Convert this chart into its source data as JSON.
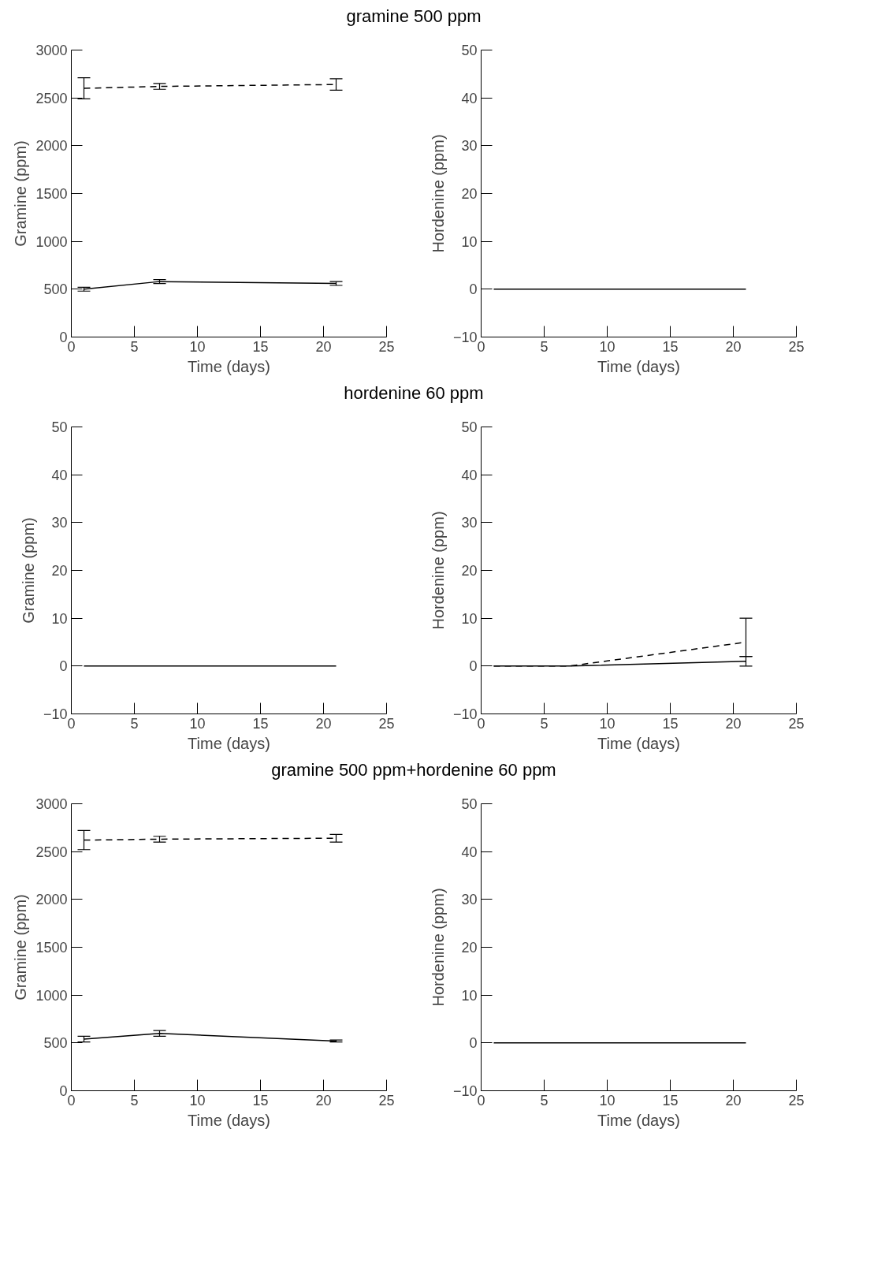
{
  "chart_data": [
    {
      "type": "line",
      "title": "gramine 500 ppm",
      "xlabel": "Time (days)",
      "ylabel": "Gramine (ppm)",
      "xlim": [
        0,
        25
      ],
      "xticks": [
        0,
        5,
        10,
        15,
        20,
        25
      ],
      "ylim": [
        0,
        3000
      ],
      "yticks": [
        0,
        500,
        1000,
        1500,
        2000,
        2500,
        3000
      ],
      "grid": false,
      "marker": "none",
      "x": [
        1,
        7,
        21
      ],
      "series": [
        {
          "color": "#000000",
          "line_style": "solid",
          "values": [
            500,
            580,
            560
          ],
          "errors": [
            20,
            20,
            20
          ]
        },
        {
          "color": "#000000",
          "line_style": "dashed",
          "values": [
            2600,
            2620,
            2640
          ],
          "errors": [
            110,
            30,
            60
          ]
        }
      ]
    },
    {
      "type": "line",
      "xlabel": "Time (days)",
      "ylabel": "Hordenine (ppm)",
      "xlim": [
        0,
        25
      ],
      "xticks": [
        0,
        5,
        10,
        15,
        20,
        25
      ],
      "ylim": [
        -10,
        50
      ],
      "yticks": [
        -10,
        0,
        10,
        20,
        30,
        40,
        50
      ],
      "grid": false,
      "marker": "none",
      "x": [
        1,
        7,
        21
      ],
      "series": [
        {
          "color": "#000000",
          "line_style": "solid",
          "values": [
            0,
            0,
            0
          ]
        }
      ]
    },
    {
      "type": "line",
      "title": "hordenine 60 ppm",
      "xlabel": "Time (days)",
      "ylabel": "Gramine (ppm)",
      "xlim": [
        0,
        25
      ],
      "xticks": [
        0,
        5,
        10,
        15,
        20,
        25
      ],
      "ylim": [
        -10,
        50
      ],
      "yticks": [
        -10,
        0,
        10,
        20,
        30,
        40,
        50
      ],
      "grid": false,
      "marker": "none",
      "x": [
        1,
        7,
        21
      ],
      "series": [
        {
          "color": "#000000",
          "line_style": "solid",
          "values": [
            0,
            0,
            0
          ]
        }
      ]
    },
    {
      "type": "line",
      "xlabel": "Time (days)",
      "ylabel": "Hordenine (ppm)",
      "xlim": [
        0,
        25
      ],
      "xticks": [
        0,
        5,
        10,
        15,
        20,
        25
      ],
      "ylim": [
        -10,
        50
      ],
      "yticks": [
        -10,
        0,
        10,
        20,
        30,
        40,
        50
      ],
      "grid": false,
      "marker": "none",
      "x": [
        1,
        7,
        21
      ],
      "series": [
        {
          "color": "#000000",
          "line_style": "solid",
          "values": [
            0,
            0,
            1
          ],
          "errors": [
            null,
            null,
            [
              0,
              2
            ]
          ]
        },
        {
          "color": "#000000",
          "line_style": "dashed",
          "values": [
            0,
            0,
            5
          ],
          "errors": [
            null,
            null,
            [
              2,
              10
            ]
          ]
        }
      ]
    },
    {
      "type": "line",
      "title": "gramine 500 ppm+hordenine 60 ppm",
      "xlabel": "Time (days)",
      "ylabel": "Gramine (ppm)",
      "xlim": [
        0,
        25
      ],
      "xticks": [
        0,
        5,
        10,
        15,
        20,
        25
      ],
      "ylim": [
        0,
        3000
      ],
      "yticks": [
        0,
        500,
        1000,
        1500,
        2000,
        2500,
        3000
      ],
      "grid": false,
      "marker": "none",
      "x": [
        1,
        7,
        21
      ],
      "series": [
        {
          "color": "#000000",
          "line_style": "solid",
          "values": [
            540,
            600,
            520
          ],
          "errors": [
            30,
            30,
            10
          ]
        },
        {
          "color": "#000000",
          "line_style": "dashed",
          "values": [
            2620,
            2630,
            2640
          ],
          "errors": [
            100,
            30,
            40
          ]
        }
      ]
    },
    {
      "type": "line",
      "xlabel": "Time (days)",
      "ylabel": "Hordenine (ppm)",
      "xlim": [
        0,
        25
      ],
      "xticks": [
        0,
        5,
        10,
        15,
        20,
        25
      ],
      "ylim": [
        -10,
        50
      ],
      "yticks": [
        -10,
        0,
        10,
        20,
        30,
        40,
        50
      ],
      "grid": false,
      "marker": "none",
      "x": [
        1,
        7,
        21
      ],
      "series": [
        {
          "color": "#000000",
          "line_style": "solid",
          "values": [
            0,
            0,
            0
          ]
        }
      ]
    }
  ]
}
